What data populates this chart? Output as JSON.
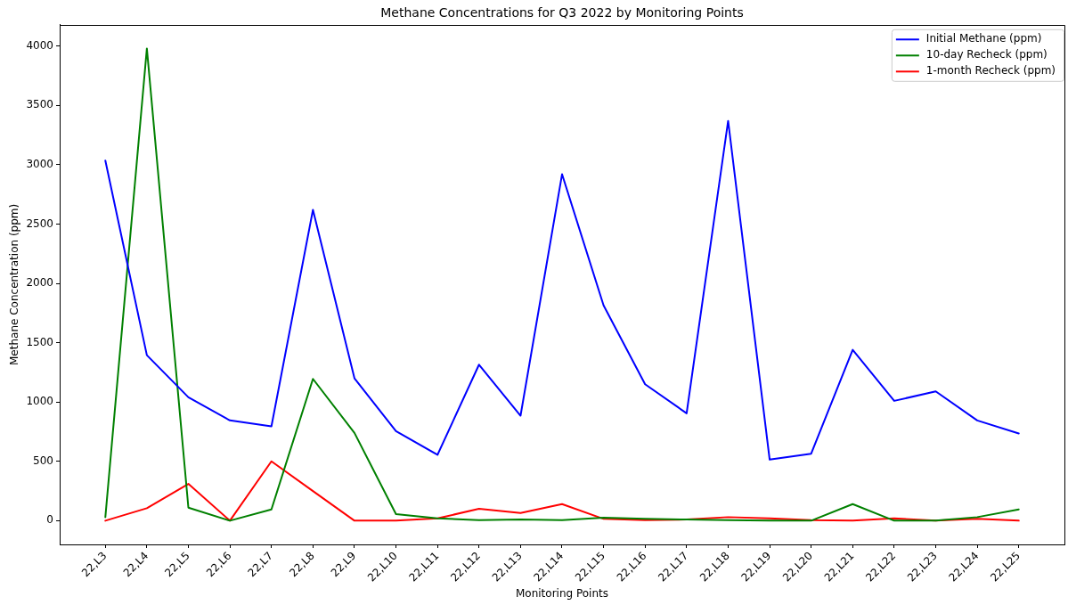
{
  "chart_data": {
    "type": "line",
    "title": "Methane Concentrations for Q3 2022 by Monitoring Points",
    "xlabel": "Monitoring Points",
    "ylabel": "Methane Concentration (ppm)",
    "categories": [
      "22,L3",
      "22,L4",
      "22,L5",
      "22,L6",
      "22,L7",
      "22,L8",
      "22,L9",
      "22,L10",
      "22,L11",
      "22,L12",
      "22,L13",
      "22,L14",
      "22,L15",
      "22,L16",
      "22,L17",
      "22,L18",
      "22,L19",
      "22,L20",
      "22,L21",
      "22,L22",
      "22,L23",
      "22,L24",
      "22,L25"
    ],
    "series": [
      {
        "name": "Initial Methane (ppm)",
        "color": "#0000ff",
        "values": [
          3035,
          1395,
          1040,
          845,
          795,
          2620,
          1200,
          755,
          555,
          1315,
          885,
          2920,
          1815,
          1150,
          905,
          3370,
          515,
          565,
          1440,
          1010,
          1090,
          845,
          735
        ]
      },
      {
        "name": "10-day Recheck (ppm)",
        "color": "#008000",
        "values": [
          30,
          3980,
          110,
          0,
          95,
          1195,
          740,
          55,
          20,
          5,
          10,
          5,
          25,
          15,
          10,
          5,
          0,
          0,
          140,
          0,
          0,
          30,
          95
        ]
      },
      {
        "name": "1-month Recheck (ppm)",
        "color": "#ff0000",
        "values": [
          0,
          105,
          310,
          0,
          500,
          250,
          0,
          0,
          20,
          100,
          65,
          140,
          15,
          5,
          10,
          30,
          20,
          5,
          0,
          20,
          0,
          15,
          0
        ]
      }
    ],
    "ylim": [
      -200,
      4180
    ],
    "yticks": [
      0,
      500,
      1000,
      1500,
      2000,
      2500,
      3000,
      3500,
      4000
    ],
    "legend": "top right"
  }
}
